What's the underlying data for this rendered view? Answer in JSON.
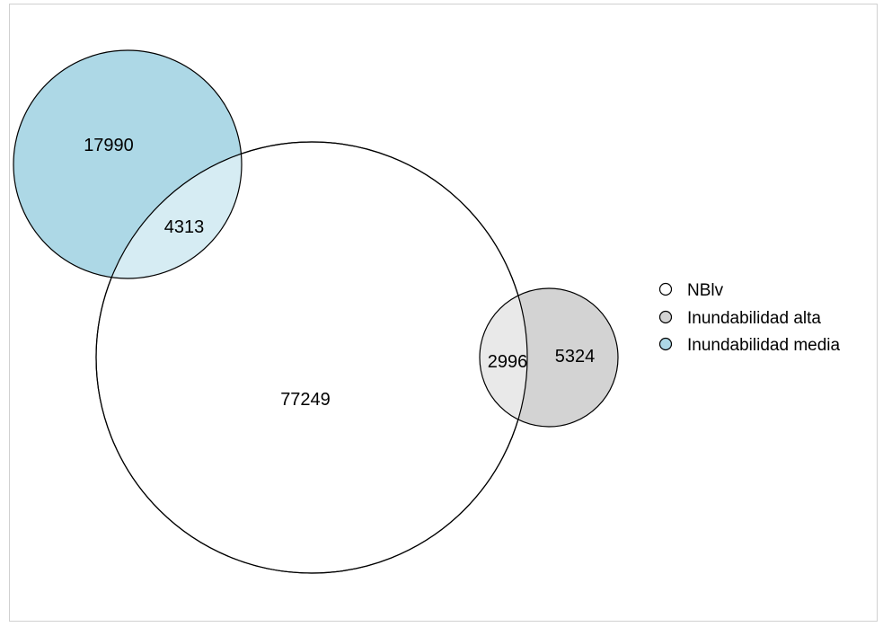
{
  "sets": [
    {
      "id": "nblv",
      "name": "NBlv",
      "color": "#ffffff"
    },
    {
      "id": "alta",
      "name": "Inundabilidad alta",
      "color": "#d3d3d3"
    },
    {
      "id": "media",
      "name": "Inundabilidad media",
      "color": "#add8e6"
    }
  ],
  "regions": {
    "media_only": "17990",
    "media_nblv": "4313",
    "nblv_only": "77249",
    "nblv_alta": "2996",
    "alta_only": "5324"
  },
  "legend": {
    "items": [
      "NBlv",
      "Inundabilidad alta",
      "Inundabilidad media"
    ]
  },
  "colors": {
    "nblv_fill": "#ffffff",
    "alta_fill": "#d3d3d3",
    "alta_overlap_fill": "#e9e9e9",
    "media_fill": "#add8e6",
    "media_overlap_fill": "#d6ecf3",
    "stroke": "#000000"
  }
}
